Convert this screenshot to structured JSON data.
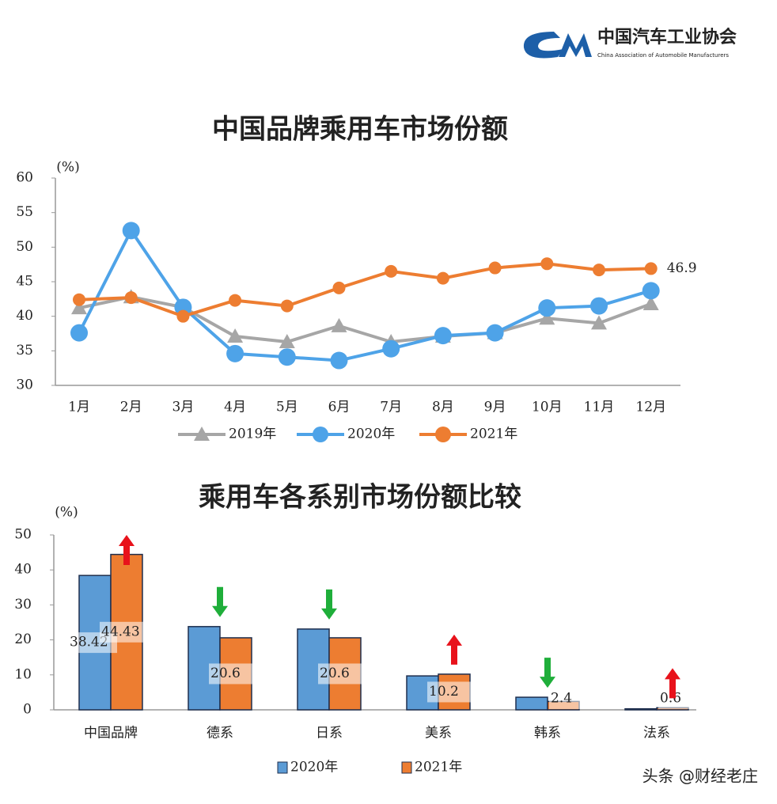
{
  "header": {
    "title": "中国汽车工业协会",
    "subtitle": "China Association of Automobile Manufacturers"
  },
  "footer": {
    "credit": "头条 @财经老庄"
  },
  "chart_data": [
    {
      "type": "line",
      "title": "中国品牌乘用车市场份额",
      "ylabel": "(%)",
      "categories": [
        "1月",
        "2月",
        "3月",
        "4月",
        "5月",
        "6月",
        "7月",
        "8月",
        "9月",
        "10月",
        "11月",
        "12月"
      ],
      "ylim": [
        30,
        60
      ],
      "yticks": [
        30,
        35,
        40,
        45,
        50,
        55,
        60
      ],
      "series": [
        {
          "name": "2019年",
          "color": "#a6a6a6",
          "marker": "triangle",
          "values": [
            41.2,
            42.8,
            41.3,
            37.1,
            36.3,
            38.6,
            36.3,
            37.1,
            37.6,
            39.7,
            39.0,
            41.8
          ]
        },
        {
          "name": "2020年",
          "color": "#4ea3e8",
          "marker": "circle",
          "values": [
            37.6,
            52.4,
            41.3,
            34.6,
            34.1,
            33.6,
            35.3,
            37.2,
            37.6,
            41.2,
            41.5,
            43.7
          ]
        },
        {
          "name": "2021年",
          "color": "#ed7d31",
          "marker": "circle",
          "values": [
            42.4,
            42.7,
            40.0,
            42.3,
            41.5,
            44.1,
            46.5,
            45.5,
            47.0,
            47.6,
            46.7,
            46.9
          ],
          "value_labels": [
            null,
            null,
            null,
            null,
            null,
            null,
            null,
            null,
            null,
            null,
            null,
            "46.9"
          ]
        }
      ]
    },
    {
      "type": "bar",
      "title": "乘用车各系别市场份额比较",
      "ylabel": "(%)",
      "categories": [
        "中国品牌",
        "德系",
        "日系",
        "美系",
        "韩系",
        "法系"
      ],
      "ylim": [
        0,
        50
      ],
      "yticks": [
        0,
        10,
        20,
        30,
        40,
        50
      ],
      "series": [
        {
          "name": "2020年",
          "color": "#5b9bd5",
          "values": [
            38.42,
            23.8,
            23.1,
            9.7,
            3.6,
            0.3
          ],
          "value_labels": [
            "38.42",
            null,
            null,
            null,
            null,
            null
          ]
        },
        {
          "name": "2021年",
          "color": "#ed7d31",
          "values": [
            44.43,
            20.6,
            20.6,
            10.2,
            2.4,
            0.6
          ],
          "value_labels": [
            "44.43",
            "20.6",
            "20.6",
            "10.2",
            "2.4",
            "0.6"
          ]
        }
      ]
    }
  ]
}
